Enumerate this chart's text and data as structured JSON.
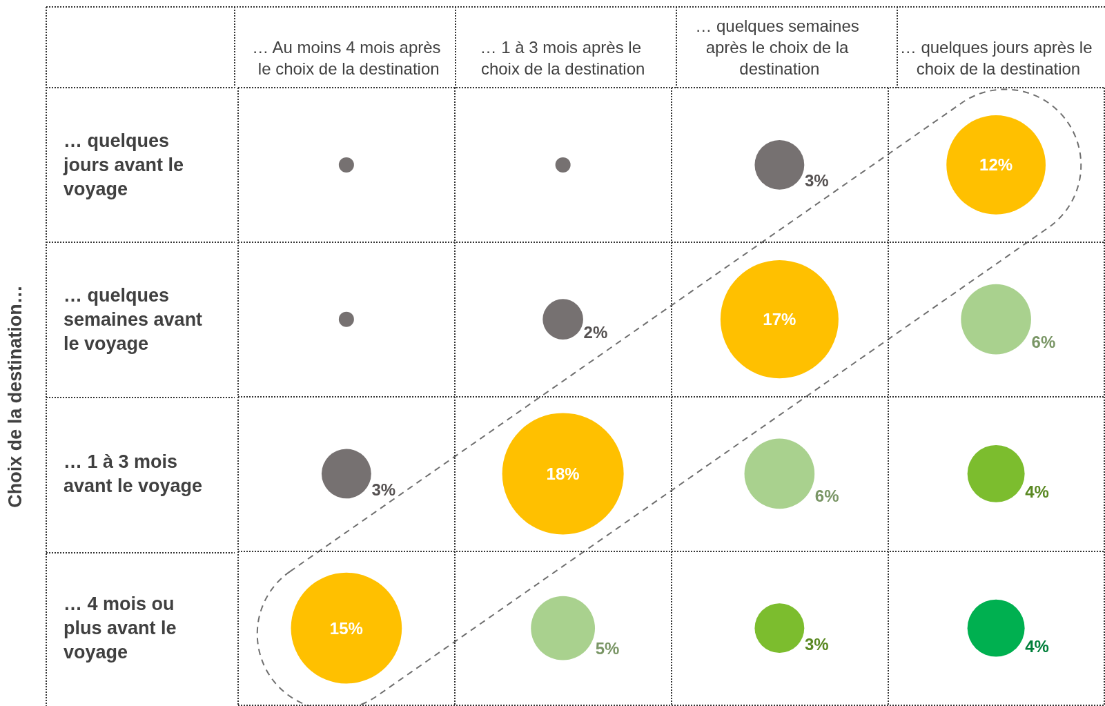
{
  "chart_data": {
    "type": "heatmap",
    "ylabel": "Choix de la destination…",
    "categories": [
      "… Au moins 4 mois après le choix de la destination",
      "… 1 à 3 mois après le choix de la destination",
      "… quelques semaines après le choix de la destination",
      "… quelques jours après le choix de la destination"
    ],
    "y_categories": [
      "… quelques jours avant le voyage",
      "… quelques semaines avant le voyage",
      "… 1 à 3 mois avant le voyage",
      "… 4 mois ou plus avant le voyage"
    ],
    "cells": [
      [
        null,
        null,
        3,
        12
      ],
      [
        null,
        2,
        17,
        6
      ],
      [
        3,
        18,
        6,
        4
      ],
      [
        15,
        5,
        3,
        4
      ]
    ],
    "cell_labels": [
      [
        null,
        null,
        "3%",
        "12%"
      ],
      [
        null,
        "2%",
        "17%",
        "6%"
      ],
      [
        "3%",
        "18%",
        "6%",
        "4%"
      ],
      [
        "15%",
        "5%",
        "3%",
        "4%"
      ]
    ],
    "colors": [
      [
        "#767171",
        "#767171",
        "#767171",
        "#ffc000"
      ],
      [
        "#767171",
        "#767171",
        "#ffc000",
        "#a9d18e"
      ],
      [
        "#767171",
        "#ffc000",
        "#a9d18e",
        "#7cbd2e"
      ],
      [
        "#ffc000",
        "#a9d18e",
        "#7cbd2e",
        "#00b050"
      ]
    ],
    "grid": true
  }
}
